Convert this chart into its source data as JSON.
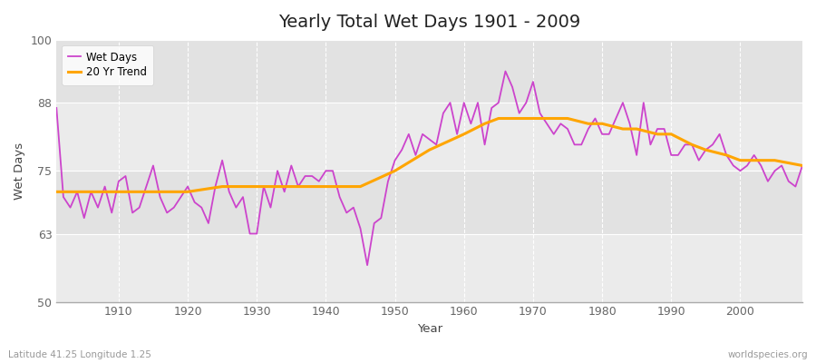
{
  "title": "Yearly Total Wet Days 1901 - 2009",
  "xlabel": "Year",
  "ylabel": "Wet Days",
  "subtitle": "Latitude 41.25 Longitude 1.25",
  "watermark": "worldspecies.org",
  "ylim": [
    50,
    100
  ],
  "yticks": [
    50,
    63,
    75,
    88,
    100
  ],
  "xlim": [
    1901,
    2009
  ],
  "line_color": "#CC44CC",
  "trend_color": "#FFA500",
  "bg_color": "#FFFFFF",
  "plot_bg_color": "#F0F0F0",
  "band_color_light": "#ECECEC",
  "band_color_dark": "#E0E0E0",
  "legend_entries": [
    "Wet Days",
    "20 Yr Trend"
  ],
  "years": [
    1901,
    1902,
    1903,
    1904,
    1905,
    1906,
    1907,
    1908,
    1909,
    1910,
    1911,
    1912,
    1913,
    1914,
    1915,
    1916,
    1917,
    1918,
    1919,
    1920,
    1921,
    1922,
    1923,
    1924,
    1925,
    1926,
    1927,
    1928,
    1929,
    1930,
    1931,
    1932,
    1933,
    1934,
    1935,
    1936,
    1937,
    1938,
    1939,
    1940,
    1941,
    1942,
    1943,
    1944,
    1945,
    1946,
    1947,
    1948,
    1949,
    1950,
    1951,
    1952,
    1953,
    1954,
    1955,
    1956,
    1957,
    1958,
    1959,
    1960,
    1961,
    1962,
    1963,
    1964,
    1965,
    1966,
    1967,
    1968,
    1969,
    1970,
    1971,
    1972,
    1973,
    1974,
    1975,
    1976,
    1977,
    1978,
    1979,
    1980,
    1981,
    1982,
    1983,
    1984,
    1985,
    1986,
    1987,
    1988,
    1989,
    1990,
    1991,
    1992,
    1993,
    1994,
    1995,
    1996,
    1997,
    1998,
    1999,
    2000,
    2001,
    2002,
    2003,
    2004,
    2005,
    2006,
    2007,
    2008,
    2009
  ],
  "wet_days": [
    87,
    70,
    68,
    71,
    66,
    71,
    68,
    72,
    67,
    73,
    74,
    67,
    68,
    72,
    76,
    70,
    67,
    68,
    70,
    72,
    69,
    68,
    65,
    72,
    77,
    71,
    68,
    70,
    63,
    63,
    72,
    68,
    75,
    71,
    76,
    72,
    74,
    74,
    73,
    75,
    75,
    70,
    67,
    68,
    64,
    57,
    65,
    66,
    73,
    77,
    79,
    82,
    78,
    82,
    81,
    80,
    86,
    88,
    82,
    88,
    84,
    88,
    80,
    87,
    88,
    94,
    91,
    86,
    88,
    92,
    86,
    84,
    82,
    84,
    83,
    80,
    80,
    83,
    85,
    82,
    82,
    85,
    88,
    84,
    78,
    88,
    80,
    83,
    83,
    78,
    78,
    80,
    80,
    77,
    79,
    80,
    82,
    78,
    76,
    75,
    76,
    78,
    76,
    73,
    75,
    76,
    73,
    72,
    76
  ],
  "trend_years": [
    1901,
    1905,
    1910,
    1915,
    1920,
    1925,
    1930,
    1935,
    1940,
    1945,
    1950,
    1955,
    1960,
    1963,
    1965,
    1968,
    1970,
    1973,
    1975,
    1978,
    1980,
    1983,
    1985,
    1988,
    1990,
    1993,
    1995,
    1998,
    2000,
    2003,
    2005,
    2009
  ],
  "trend_values": [
    71,
    71,
    71,
    71,
    71,
    72,
    72,
    72,
    72,
    72,
    75,
    79,
    82,
    84,
    85,
    85,
    85,
    85,
    85,
    84,
    84,
    83,
    83,
    82,
    82,
    80,
    79,
    78,
    77,
    77,
    77,
    76
  ]
}
